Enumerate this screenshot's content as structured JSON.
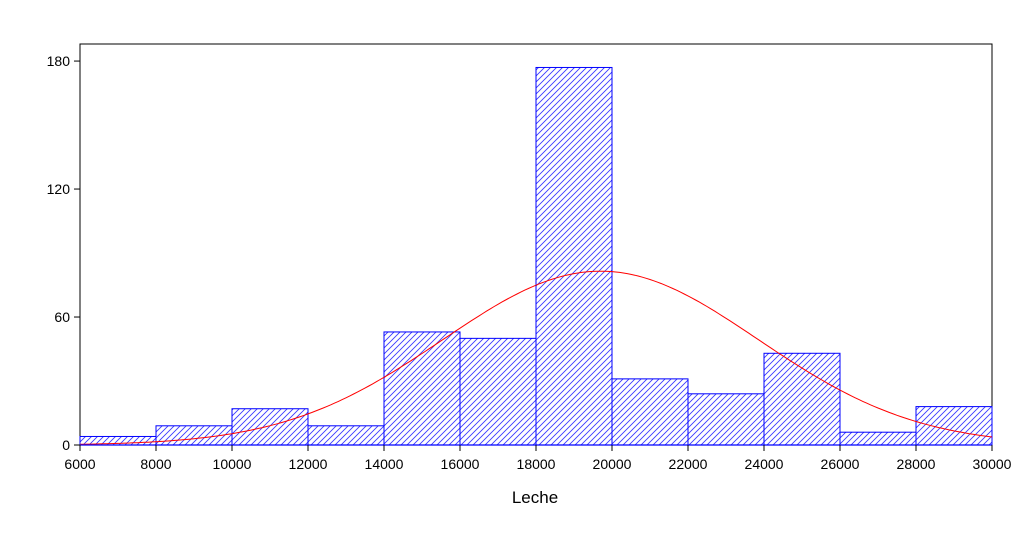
{
  "chart_data": {
    "type": "bar",
    "subtype": "histogram",
    "xlabel": "Leche",
    "ylabel": "",
    "title": "",
    "xlim": [
      6000,
      30000
    ],
    "ylim": [
      0,
      188
    ],
    "x_ticks": [
      "6000",
      "8000",
      "10000",
      "12000",
      "14000",
      "16000",
      "18000",
      "20000",
      "22000",
      "24000",
      "26000",
      "28000",
      "30000"
    ],
    "x_tick_values": [
      6000,
      8000,
      10000,
      12000,
      14000,
      16000,
      18000,
      20000,
      22000,
      24000,
      26000,
      28000,
      30000
    ],
    "y_ticks": [
      "0",
      "60",
      "120",
      "180"
    ],
    "y_tick_values": [
      0,
      60,
      120,
      180
    ],
    "bins": [
      {
        "from": 6000,
        "to": 8000,
        "count": 4
      },
      {
        "from": 8000,
        "to": 10000,
        "count": 9
      },
      {
        "from": 10000,
        "to": 12000,
        "count": 17
      },
      {
        "from": 12000,
        "to": 14000,
        "count": 9
      },
      {
        "from": 14000,
        "to": 16000,
        "count": 53
      },
      {
        "from": 16000,
        "to": 18000,
        "count": 50
      },
      {
        "from": 18000,
        "to": 20000,
        "count": 177
      },
      {
        "from": 20000,
        "to": 22000,
        "count": 31
      },
      {
        "from": 22000,
        "to": 24000,
        "count": 24
      },
      {
        "from": 24000,
        "to": 26000,
        "count": 43
      },
      {
        "from": 26000,
        "to": 28000,
        "count": 6
      },
      {
        "from": 28000,
        "to": 30000,
        "count": 18
      }
    ],
    "normal_curve": {
      "mean": 19700,
      "sd": 4150,
      "peak": 81.5
    },
    "colors": {
      "bars": "#0000ff",
      "curve": "#ff0000",
      "frame": "#000000"
    },
    "grid": false,
    "legend": "none"
  }
}
